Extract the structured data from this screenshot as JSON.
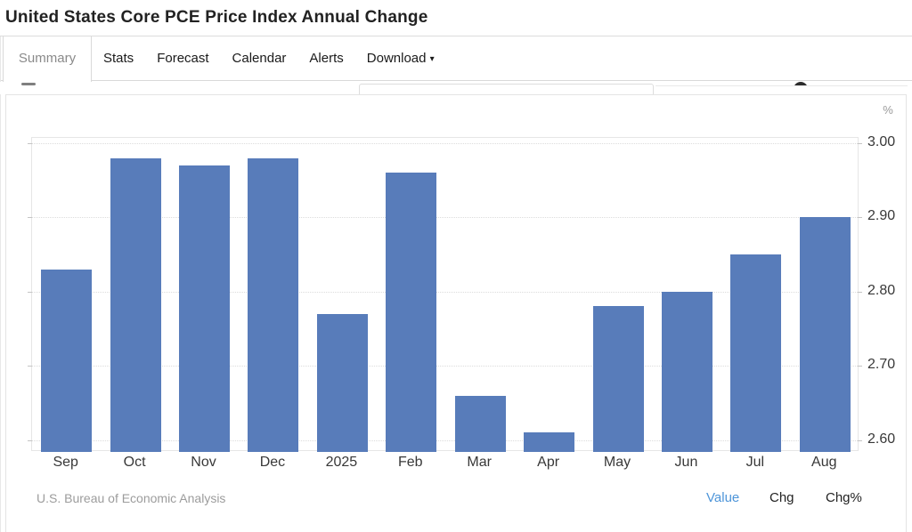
{
  "window": {
    "title": "United States Core PCE Price Index Annual Change"
  },
  "tabs": {
    "items": [
      {
        "label": "Summary",
        "active": true
      },
      {
        "label": "Stats"
      },
      {
        "label": "Forecast"
      },
      {
        "label": "Calendar"
      },
      {
        "label": "Alerts"
      },
      {
        "label": "Download",
        "caret": "▾"
      }
    ]
  },
  "toolbar": {
    "search_value": "",
    "search_placeholder": "",
    "icons": {
      "left": "chart-tool-icon",
      "right": "dark-circle-button"
    }
  },
  "chart_data": {
    "type": "bar",
    "title": "United States Core PCE Price Index Annual Change",
    "unit": "%",
    "categories": [
      "Sep",
      "Oct",
      "Nov",
      "Dec",
      "2025",
      "Feb",
      "Mar",
      "Apr",
      "May",
      "Jun",
      "Jul",
      "Aug"
    ],
    "values": [
      2.83,
      2.98,
      2.97,
      2.98,
      2.77,
      2.96,
      2.66,
      2.61,
      2.78,
      2.8,
      2.85,
      2.9
    ],
    "yticks": [
      "3.00",
      "2.90",
      "2.80",
      "2.70",
      "2.60"
    ],
    "ylim": [
      2.584,
      3.007
    ],
    "xlabel": "",
    "ylabel": "%",
    "grid": "horizontal-dotted",
    "legend": false,
    "bar_color": "#587CBA",
    "source": "U.S. Bureau of Economic Analysis"
  },
  "footer": {
    "source": "U.S. Bureau of Economic Analysis",
    "links": [
      {
        "label": "Value",
        "active": true
      },
      {
        "label": "Chg",
        "active": false
      },
      {
        "label": "Chg%",
        "active": false
      }
    ]
  },
  "colors": {
    "bar": "#587CBA",
    "active_link": "#4E95D9",
    "active_tab_text": "#8A8A8A"
  }
}
